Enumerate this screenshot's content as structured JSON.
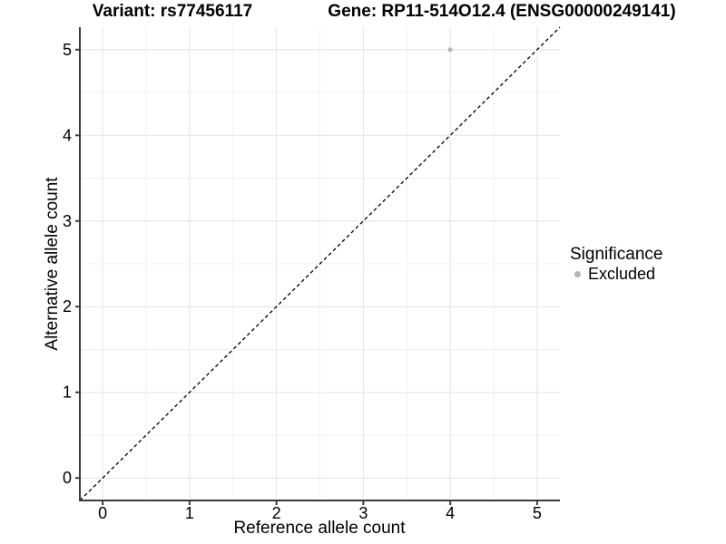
{
  "chart_data": {
    "type": "scatter",
    "titles": {
      "variant": "Variant: rs77456117",
      "gene": "Gene: RP11-514O12.4 (ENSG00000249141)"
    },
    "xlabel": "Reference allele count",
    "ylabel": "Alternative allele count",
    "x_ticks": [
      0,
      1,
      2,
      3,
      4,
      5
    ],
    "y_ticks": [
      0,
      1,
      2,
      3,
      4,
      5
    ],
    "xlim": [
      -0.2625,
      5.2625
    ],
    "ylim": [
      -0.2625,
      5.2625
    ],
    "minor_step": 0.5,
    "grid": "major+minor",
    "points": [
      {
        "x": 4,
        "y": 5,
        "significance": "Excluded"
      }
    ],
    "identity_line": {
      "type": "y=x",
      "style": "dashed"
    },
    "legend": {
      "title": "Significance",
      "position": "right",
      "items": [
        {
          "label": "Excluded",
          "color": "#b5b5b5"
        }
      ]
    },
    "colors": {
      "point": "#b5b5b5",
      "grid_major": "#e4e4e4",
      "grid_minor": "#f1f1f1",
      "axis": "#3c3c3c",
      "identity_line": "#000000",
      "text": "#000000"
    }
  }
}
